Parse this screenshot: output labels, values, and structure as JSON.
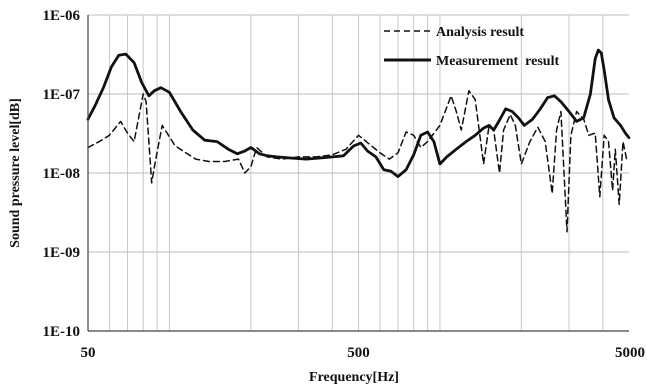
{
  "chart_data": {
    "type": "line",
    "xlabel": "Frequency[Hz]",
    "ylabel": "Sound pressure level[dB]",
    "x_scale": "log",
    "y_scale": "log",
    "xlim": [
      50,
      5000
    ],
    "ylim": [
      1e-10,
      1e-06
    ],
    "x_tick_labels": [
      {
        "value": 50,
        "label": "50"
      },
      {
        "value": 500,
        "label": "500"
      },
      {
        "value": 5000,
        "label": "5000"
      }
    ],
    "y_tick_labels": [
      {
        "value": 1e-10,
        "label": "1E-10"
      },
      {
        "value": 1e-09,
        "label": "1E-09"
      },
      {
        "value": 1e-08,
        "label": "1E-08"
      },
      {
        "value": 1e-07,
        "label": "1E-07"
      },
      {
        "value": 1e-06,
        "label": "1E-06"
      }
    ],
    "grid": {
      "vertical": "log-minor",
      "horizontal": "decades"
    },
    "legend_position": "top-right",
    "series": [
      {
        "name": "Analysis result",
        "style": "dashed",
        "color": "#111111",
        "points": [
          [
            50,
            2.1e-08
          ],
          [
            55,
            2.5e-08
          ],
          [
            60,
            3e-08
          ],
          [
            66,
            4.5e-08
          ],
          [
            70,
            3.2e-08
          ],
          [
            74,
            2.5e-08
          ],
          [
            80,
            1e-07
          ],
          [
            82,
            8e-08
          ],
          [
            86,
            7.5e-09
          ],
          [
            88,
            1.2e-08
          ],
          [
            94,
            4e-08
          ],
          [
            105,
            2.2e-08
          ],
          [
            125,
            1.5e-08
          ],
          [
            140,
            1.4e-08
          ],
          [
            160,
            1.4e-08
          ],
          [
            180,
            1.5e-08
          ],
          [
            190,
            1e-08
          ],
          [
            200,
            1.2e-08
          ],
          [
            210,
            2.1e-08
          ],
          [
            230,
            1.6e-08
          ],
          [
            260,
            1.5e-08
          ],
          [
            300,
            1.6e-08
          ],
          [
            350,
            1.6e-08
          ],
          [
            400,
            1.7e-08
          ],
          [
            450,
            2e-08
          ],
          [
            500,
            3e-08
          ],
          [
            550,
            2.3e-08
          ],
          [
            600,
            1.8e-08
          ],
          [
            650,
            1.5e-08
          ],
          [
            700,
            1.8e-08
          ],
          [
            750,
            3.3e-08
          ],
          [
            800,
            3e-08
          ],
          [
            850,
            2.1e-08
          ],
          [
            900,
            2.5e-08
          ],
          [
            1000,
            4e-08
          ],
          [
            1100,
            9.5e-08
          ],
          [
            1150,
            6e-08
          ],
          [
            1200,
            3.5e-08
          ],
          [
            1280,
            1.1e-07
          ],
          [
            1350,
            8.5e-08
          ],
          [
            1450,
            1.3e-08
          ],
          [
            1520,
            4e-08
          ],
          [
            1580,
            3.5e-08
          ],
          [
            1660,
            1e-08
          ],
          [
            1720,
            3.5e-08
          ],
          [
            1820,
            5.5e-08
          ],
          [
            1900,
            4e-08
          ],
          [
            2000,
            1.3e-08
          ],
          [
            2150,
            2.5e-08
          ],
          [
            2300,
            3.8e-08
          ],
          [
            2450,
            2.5e-08
          ],
          [
            2600,
            5.5e-09
          ],
          [
            2700,
            3.5e-08
          ],
          [
            2800,
            6e-08
          ],
          [
            2950,
            1.8e-09
          ],
          [
            3050,
            3e-08
          ],
          [
            3200,
            6e-08
          ],
          [
            3400,
            4.8e-08
          ],
          [
            3550,
            3e-08
          ],
          [
            3750,
            3.2e-08
          ],
          [
            3900,
            5e-09
          ],
          [
            4050,
            3e-08
          ],
          [
            4200,
            2.5e-08
          ],
          [
            4350,
            6e-09
          ],
          [
            4450,
            2e-08
          ],
          [
            4600,
            4e-09
          ],
          [
            4750,
            2.5e-08
          ],
          [
            4900,
            1.5e-08
          ],
          [
            5000,
            1.4e-08
          ]
        ]
      },
      {
        "name": "Measurement  result",
        "style": "solid",
        "color": "#111111",
        "points": [
          [
            50,
            4.8e-08
          ],
          [
            53,
            7e-08
          ],
          [
            57,
            1.2e-07
          ],
          [
            61,
            2.2e-07
          ],
          [
            65,
            3.1e-07
          ],
          [
            69,
            3.2e-07
          ],
          [
            74,
            2.5e-07
          ],
          [
            79,
            1.4e-07
          ],
          [
            84,
            9.5e-08
          ],
          [
            88,
            1.1e-07
          ],
          [
            93,
            1.2e-07
          ],
          [
            100,
            1.05e-07
          ],
          [
            110,
            6e-08
          ],
          [
            122,
            3.5e-08
          ],
          [
            135,
            2.6e-08
          ],
          [
            150,
            2.5e-08
          ],
          [
            165,
            2e-08
          ],
          [
            178,
            1.75e-08
          ],
          [
            190,
            1.9e-08
          ],
          [
            200,
            2.1e-08
          ],
          [
            215,
            1.75e-08
          ],
          [
            230,
            1.65e-08
          ],
          [
            250,
            1.6e-08
          ],
          [
            280,
            1.55e-08
          ],
          [
            320,
            1.5e-08
          ],
          [
            360,
            1.55e-08
          ],
          [
            400,
            1.6e-08
          ],
          [
            440,
            1.65e-08
          ],
          [
            480,
            2.2e-08
          ],
          [
            510,
            2.4e-08
          ],
          [
            540,
            1.9e-08
          ],
          [
            580,
            1.6e-08
          ],
          [
            620,
            1.1e-08
          ],
          [
            660,
            1.05e-08
          ],
          [
            700,
            9e-09
          ],
          [
            750,
            1.1e-08
          ],
          [
            800,
            1.7e-08
          ],
          [
            850,
            3e-08
          ],
          [
            900,
            3.3e-08
          ],
          [
            950,
            2.5e-08
          ],
          [
            1000,
            1.3e-08
          ],
          [
            1060,
            1.6e-08
          ],
          [
            1150,
            2e-08
          ],
          [
            1250,
            2.5e-08
          ],
          [
            1350,
            3e-08
          ],
          [
            1450,
            3.7e-08
          ],
          [
            1520,
            4e-08
          ],
          [
            1580,
            3.5e-08
          ],
          [
            1650,
            4.5e-08
          ],
          [
            1750,
            6.5e-08
          ],
          [
            1850,
            6e-08
          ],
          [
            1950,
            5e-08
          ],
          [
            2050,
            4e-08
          ],
          [
            2200,
            4.8e-08
          ],
          [
            2350,
            6.5e-08
          ],
          [
            2500,
            9e-08
          ],
          [
            2650,
            9.5e-08
          ],
          [
            2800,
            8e-08
          ],
          [
            3000,
            6e-08
          ],
          [
            3200,
            4.5e-08
          ],
          [
            3400,
            5e-08
          ],
          [
            3600,
            1e-07
          ],
          [
            3750,
            2.8e-07
          ],
          [
            3850,
            3.6e-07
          ],
          [
            3950,
            3.3e-07
          ],
          [
            4050,
            2e-07
          ],
          [
            4200,
            8.5e-08
          ],
          [
            4400,
            5e-08
          ],
          [
            4650,
            4e-08
          ],
          [
            4850,
            3.2e-08
          ],
          [
            5000,
            2.8e-08
          ]
        ]
      }
    ]
  }
}
